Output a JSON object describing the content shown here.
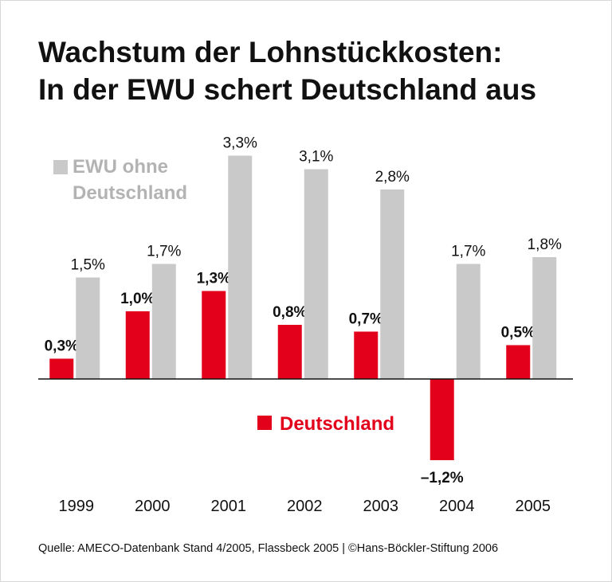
{
  "chart_data": {
    "type": "bar",
    "title": [
      "Wachstum der Lohnstückkosten:",
      "In der EWU schert Deutschland aus"
    ],
    "categories": [
      "1999",
      "2000",
      "2001",
      "2002",
      "2003",
      "2004",
      "2005"
    ],
    "series": [
      {
        "name": "Deutschland",
        "color": "#e2001a",
        "values": [
          0.3,
          1.0,
          1.3,
          0.8,
          0.7,
          -1.2,
          0.5
        ],
        "value_labels": [
          "0,3%",
          "1,0%",
          "1,3%",
          "0,8%",
          "0,7%",
          "–1,2%",
          "0,5%"
        ]
      },
      {
        "name": "EWU ohne Deutschland",
        "color": "#c9c9c9",
        "values": [
          1.5,
          1.7,
          3.3,
          3.1,
          2.8,
          1.7,
          1.8
        ],
        "value_labels": [
          "1,5%",
          "1,7%",
          "3,3%",
          "3,1%",
          "2,8%",
          "1,7%",
          "1,8%"
        ]
      }
    ],
    "source": "Quelle: AMECO-Datenbank Stand 4/2005, Flassbeck 2005 | ©Hans-Böckler-Stiftung 2006"
  }
}
